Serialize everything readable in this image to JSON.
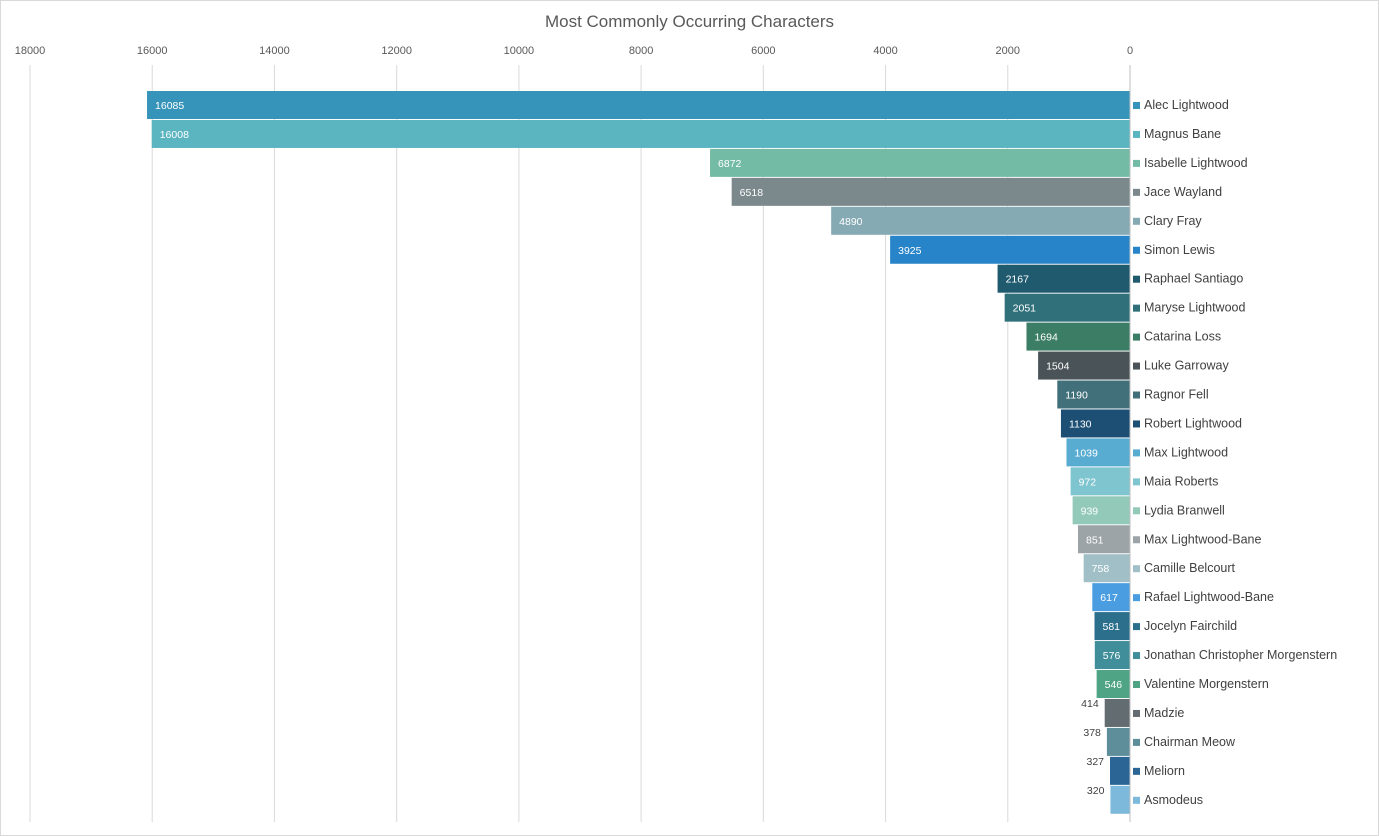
{
  "chart_data": {
    "type": "bar",
    "orientation": "horizontal",
    "x_axis_reversed": true,
    "x_axis_position": "top",
    "title": "Most Commonly Occurring Characters",
    "xlabel": "",
    "ylabel": "",
    "xlim": [
      0,
      18000
    ],
    "x_ticks": [
      18000,
      16000,
      14000,
      12000,
      10000,
      8000,
      6000,
      4000,
      2000,
      0
    ],
    "grid": "vertical",
    "legend": "right (category labels with color swatches)",
    "categories": [
      "Alec Lightwood",
      "Magnus Bane",
      "Isabelle Lightwood",
      "Jace Wayland",
      "Clary Fray",
      "Simon Lewis",
      "Raphael Santiago",
      "Maryse Lightwood",
      "Catarina Loss",
      "Luke Garroway",
      "Ragnor Fell",
      "Robert Lightwood",
      "Max Lightwood",
      "Maia Roberts",
      "Lydia Branwell",
      "Max Lightwood-Bane",
      "Camille Belcourt",
      "Rafael Lightwood-Bane",
      "Jocelyn Fairchild",
      "Jonathan Christopher Morgenstern",
      "Valentine Morgenstern",
      "Madzie",
      "Chairman Meow",
      "Meliorn",
      "Asmodeus"
    ],
    "values": [
      16085,
      16008,
      6872,
      6518,
      4890,
      3925,
      2167,
      2051,
      1694,
      1504,
      1190,
      1130,
      1039,
      972,
      939,
      851,
      758,
      617,
      581,
      576,
      546,
      414,
      378,
      327,
      320
    ],
    "colors": [
      "#3694BA",
      "#5AB5C1",
      "#74BBA5",
      "#7B898C",
      "#85AAB4",
      "#2784C8",
      "#1F5A6E",
      "#2F707A",
      "#3C7E65",
      "#4A5458",
      "#42707A",
      "#1D4E74",
      "#58ACD1",
      "#7FC5CF",
      "#92C9B9",
      "#9CA4A7",
      "#A0BFC7",
      "#4A9DE0",
      "#2B6F8D",
      "#3F8E99",
      "#4FA486",
      "#636D71",
      "#5E8E9A",
      "#2A6596",
      "#7DB9DB"
    ],
    "value_label_colors": [
      "#ffffff",
      "#ffffff",
      "#ffffff",
      "#ffffff",
      "#ffffff",
      "#ffffff",
      "#ffffff",
      "#ffffff",
      "#ffffff",
      "#ffffff",
      "#ffffff",
      "#ffffff",
      "#ffffff",
      "#ffffff",
      "#ffffff",
      "#ffffff",
      "#ffffff",
      "#ffffff",
      "#ffffff",
      "#ffffff",
      "#ffffff",
      "#404040",
      "#404040",
      "#404040",
      "#404040"
    ],
    "gridline_color": "#d9d9d9"
  }
}
